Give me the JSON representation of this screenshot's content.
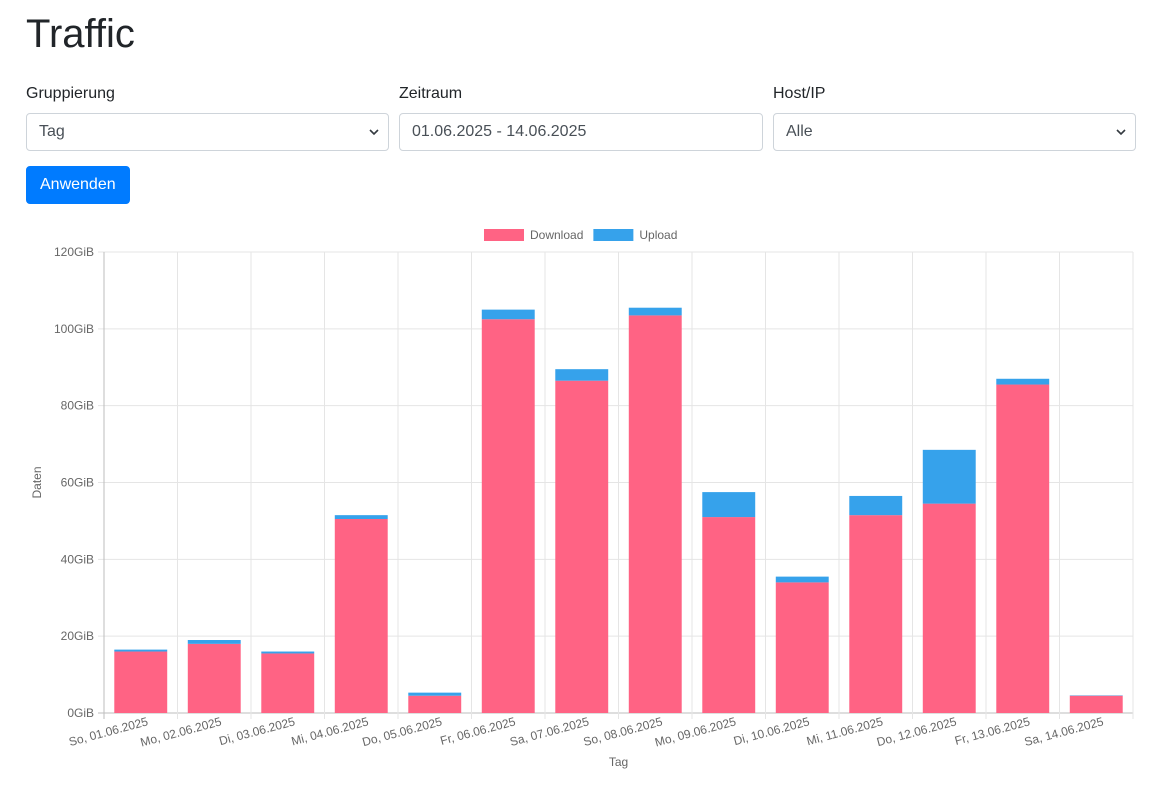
{
  "page": {
    "title": "Traffic"
  },
  "filters": {
    "grouping": {
      "label": "Gruppierung",
      "value": "Tag"
    },
    "range": {
      "label": "Zeitraum",
      "value": "01.06.2025 - 14.06.2025"
    },
    "host": {
      "label": "Host/IP",
      "value": "Alle"
    },
    "apply_label": "Anwenden"
  },
  "chart_data": {
    "type": "bar",
    "stacked": true,
    "xlabel": "Tag",
    "ylabel": "Daten",
    "ylim": [
      0,
      120
    ],
    "yticks": [
      "0GiB",
      "20GiB",
      "40GiB",
      "60GiB",
      "80GiB",
      "100GiB",
      "120GiB"
    ],
    "grid": true,
    "legend": "top-center",
    "categories": [
      "So, 01.06.2025",
      "Mo, 02.06.2025",
      "Di, 03.06.2025",
      "Mi, 04.06.2025",
      "Do, 05.06.2025",
      "Fr, 06.06.2025",
      "Sa, 07.06.2025",
      "So, 08.06.2025",
      "Mo, 09.06.2025",
      "Di, 10.06.2025",
      "Mi, 11.06.2025",
      "Do, 12.06.2025",
      "Fr, 13.06.2025",
      "Sa, 14.06.2025"
    ],
    "series": [
      {
        "name": "Download",
        "color": "#ff6384",
        "values": [
          16.0,
          18.0,
          15.5,
          50.5,
          4.5,
          102.5,
          86.5,
          103.5,
          51.0,
          34.0,
          51.5,
          54.5,
          85.5,
          4.5
        ]
      },
      {
        "name": "Upload",
        "color": "#36a2eb",
        "values": [
          0.5,
          1.0,
          0.5,
          1.0,
          0.8,
          2.5,
          3.0,
          2.0,
          6.5,
          1.5,
          5.0,
          14.0,
          1.5,
          0.1
        ]
      }
    ]
  }
}
